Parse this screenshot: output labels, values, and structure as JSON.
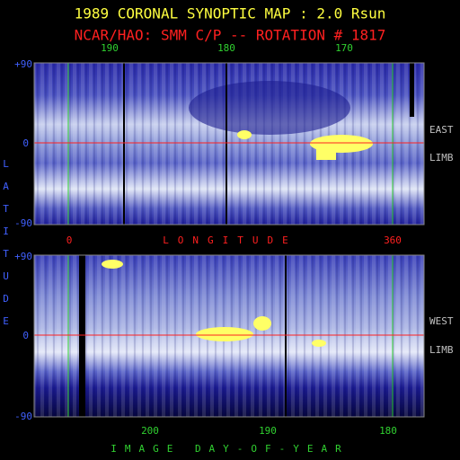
{
  "title": "1989 CORONAL SYNOPTIC MAP : 2.0 Rsun",
  "subtitle": "NCAR/HAO: SMM C/P -- ROTATION # 1817",
  "top_axis": {
    "labels": [
      "190",
      "180",
      "170"
    ]
  },
  "latitude_label": "LATITUDE",
  "east_panel": {
    "lat_labels": [
      "+90",
      "0",
      "-90"
    ],
    "side_label": [
      "EAST",
      "LIMB"
    ]
  },
  "longitude_axis": {
    "start": "0",
    "label": "LONGITUDE",
    "end": "360"
  },
  "west_panel": {
    "lat_labels": [
      "+90",
      "0",
      "-90"
    ],
    "side_label": [
      "WEST",
      "LIMB"
    ]
  },
  "bottom_axis": {
    "labels": [
      "200",
      "190",
      "180"
    ],
    "label": "IMAGE DAY-OF-YEAR"
  }
}
